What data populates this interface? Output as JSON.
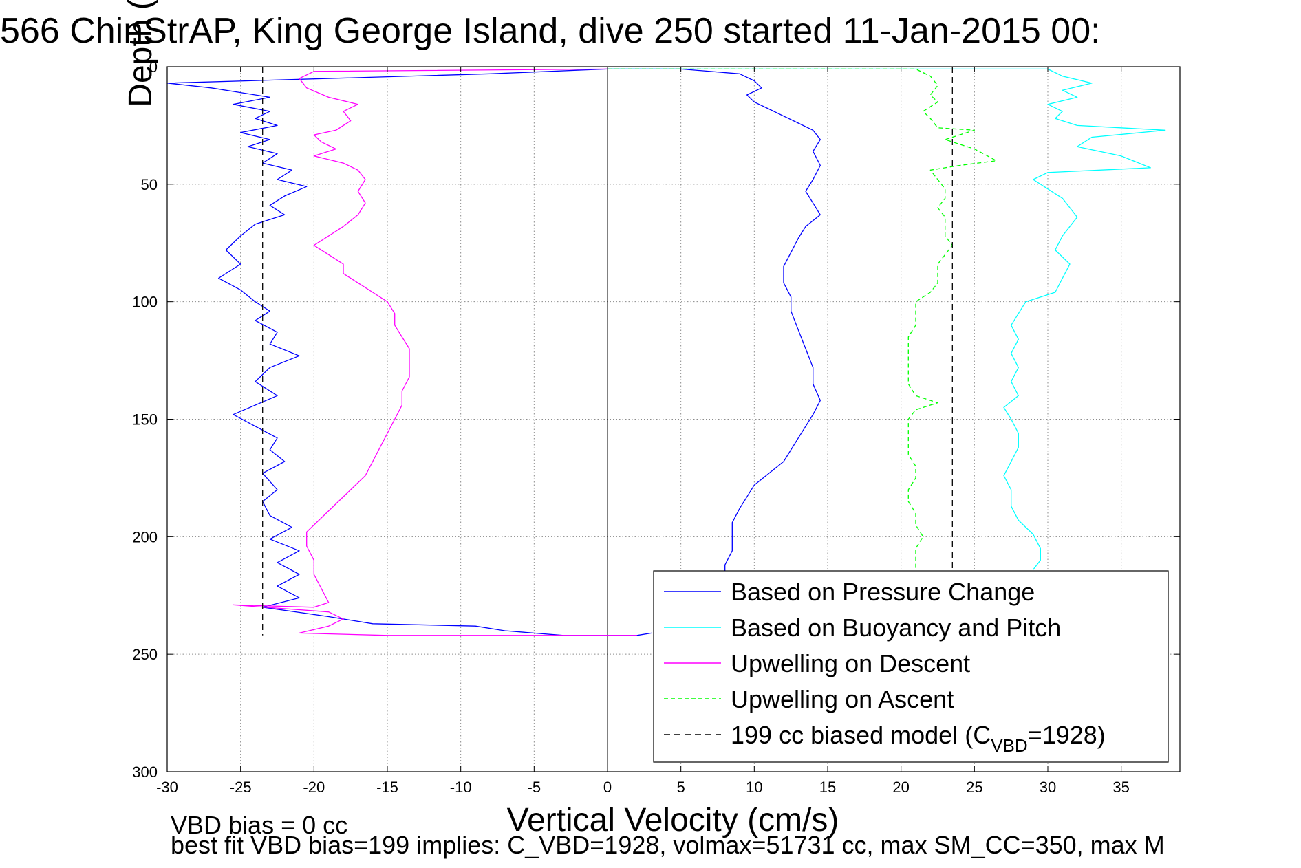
{
  "figure": {
    "title": "566 ChinStrAP, King George Island, dive 250 started 11-Jan-2015 00:",
    "footer_line1": "VBD bias = 0 cc",
    "footer_line2": "best fit VBD bias=199 implies: C_VBD=1928, volmax=51731 cc, max SM_CC=350, max M"
  },
  "chart_data": {
    "type": "line",
    "xlabel": "Vertical Velocity (cm/s)",
    "ylabel": "Depth (m)",
    "xlim": [
      -30,
      39
    ],
    "ylim": [
      0,
      300
    ],
    "y_reversed": true,
    "xticks": [
      -30,
      -25,
      -20,
      -15,
      -10,
      -5,
      0,
      5,
      10,
      15,
      20,
      25,
      30,
      35
    ],
    "yticks": [
      0,
      50,
      100,
      150,
      200,
      250,
      300
    ],
    "grid": true,
    "legend_position": "lower-right",
    "series": [
      {
        "name": "Based on Pressure Change",
        "color": "#0000ff",
        "dash": "solid",
        "points": [
          [
            0,
            1
          ],
          [
            -8,
            3
          ],
          [
            -30,
            7
          ],
          [
            -27,
            9
          ],
          [
            -25,
            11
          ],
          [
            -23,
            13
          ],
          [
            -25.5,
            16
          ],
          [
            -23,
            19
          ],
          [
            -24,
            22
          ],
          [
            -22.5,
            25
          ],
          [
            -25,
            28
          ],
          [
            -23,
            31
          ],
          [
            -24.5,
            34
          ],
          [
            -22.5,
            37
          ],
          [
            -23.5,
            41
          ],
          [
            -21.5,
            44
          ],
          [
            -22.5,
            48
          ],
          [
            -20.5,
            51
          ],
          [
            -22,
            55
          ],
          [
            -23,
            59
          ],
          [
            -22,
            63
          ],
          [
            -24,
            67
          ],
          [
            -25,
            72
          ],
          [
            -26,
            78
          ],
          [
            -25,
            84
          ],
          [
            -26.5,
            90
          ],
          [
            -25,
            95
          ],
          [
            -24,
            100
          ],
          [
            -23,
            104
          ],
          [
            -24,
            108
          ],
          [
            -22.5,
            113
          ],
          [
            -23,
            118
          ],
          [
            -21,
            123
          ],
          [
            -23,
            128
          ],
          [
            -24,
            134
          ],
          [
            -22.5,
            140
          ],
          [
            -25.5,
            148
          ],
          [
            -24,
            153
          ],
          [
            -22.5,
            158
          ],
          [
            -23,
            163
          ],
          [
            -22,
            168
          ],
          [
            -23.5,
            173
          ],
          [
            -22.5,
            180
          ],
          [
            -23.5,
            185
          ],
          [
            -23,
            191
          ],
          [
            -21.5,
            196
          ],
          [
            -23,
            201
          ],
          [
            -21,
            206
          ],
          [
            -22.5,
            211
          ],
          [
            -21,
            216
          ],
          [
            -22.5,
            221
          ],
          [
            -21,
            226
          ],
          [
            -23.5,
            230
          ],
          [
            -19,
            234
          ],
          [
            -16,
            237
          ],
          [
            -9,
            238
          ],
          [
            -7,
            240
          ],
          [
            -3,
            242
          ],
          [
            0,
            242
          ],
          [
            2,
            242
          ],
          [
            3,
            241
          ]
        ]
      },
      {
        "name": "Based on Pressure Change",
        "color": "#0000ff",
        "dash": "solid",
        "points": [
          [
            0,
            1
          ],
          [
            5,
            1
          ],
          [
            9,
            3
          ],
          [
            10,
            6
          ],
          [
            10.5,
            9
          ],
          [
            9.5,
            12
          ],
          [
            10,
            15
          ],
          [
            11,
            18
          ],
          [
            12,
            21
          ],
          [
            13,
            24
          ],
          [
            14,
            27
          ],
          [
            14.5,
            31
          ],
          [
            14,
            36
          ],
          [
            14.5,
            42
          ],
          [
            14,
            48
          ],
          [
            13.5,
            53
          ],
          [
            14,
            58
          ],
          [
            14.5,
            63
          ],
          [
            13.5,
            68
          ],
          [
            13,
            73
          ],
          [
            12.5,
            79
          ],
          [
            12,
            85
          ],
          [
            12,
            92
          ],
          [
            12.5,
            98
          ],
          [
            12.5,
            104
          ],
          [
            13,
            112
          ],
          [
            13.5,
            120
          ],
          [
            14,
            128
          ],
          [
            14,
            135
          ],
          [
            14.5,
            142
          ],
          [
            14,
            148
          ],
          [
            13.5,
            153
          ],
          [
            13,
            158
          ],
          [
            12.5,
            163
          ],
          [
            12,
            168
          ],
          [
            11,
            173
          ],
          [
            10,
            178
          ],
          [
            9.5,
            183
          ],
          [
            9,
            188
          ],
          [
            8.5,
            194
          ],
          [
            8.5,
            200
          ],
          [
            8.5,
            206
          ],
          [
            8,
            212
          ],
          [
            8,
            216
          ]
        ]
      },
      {
        "name": "Based on Buoyancy and Pitch",
        "color": "#00ffff",
        "dash": "solid",
        "points": [
          [
            0,
            1
          ],
          [
            30,
            1
          ],
          [
            31,
            4
          ],
          [
            33,
            7
          ],
          [
            31,
            10
          ],
          [
            32,
            13
          ],
          [
            30,
            16
          ],
          [
            31,
            19
          ],
          [
            30.5,
            22
          ],
          [
            32,
            25
          ],
          [
            38,
            27
          ],
          [
            33,
            30
          ],
          [
            32,
            34
          ],
          [
            35,
            38
          ],
          [
            37,
            43
          ],
          [
            30,
            45
          ],
          [
            29,
            48
          ],
          [
            30,
            52
          ],
          [
            31,
            56
          ],
          [
            31.5,
            60
          ],
          [
            32,
            64
          ],
          [
            31.5,
            68
          ],
          [
            31,
            72
          ],
          [
            30.5,
            78
          ],
          [
            31.5,
            84
          ],
          [
            31,
            90
          ],
          [
            30.5,
            96
          ],
          [
            28.5,
            100
          ],
          [
            28,
            105
          ],
          [
            27.5,
            110
          ],
          [
            28,
            116
          ],
          [
            27.5,
            122
          ],
          [
            28,
            128
          ],
          [
            27.5,
            134
          ],
          [
            28,
            140
          ],
          [
            27,
            145
          ],
          [
            27.5,
            150
          ],
          [
            28,
            156
          ],
          [
            28,
            162
          ],
          [
            27.5,
            168
          ],
          [
            27,
            174
          ],
          [
            27.5,
            180
          ],
          [
            27.5,
            187
          ],
          [
            28,
            193
          ],
          [
            29,
            199
          ],
          [
            29.5,
            205
          ],
          [
            29.5,
            210
          ],
          [
            29,
            214
          ]
        ]
      },
      {
        "name": "Upwelling on Descent",
        "color": "#ff00ff",
        "dash": "solid",
        "points": [
          [
            0,
            1
          ],
          [
            -20,
            2
          ],
          [
            -21,
            5
          ],
          [
            -20.5,
            9
          ],
          [
            -19,
            13
          ],
          [
            -17,
            16
          ],
          [
            -18,
            19
          ],
          [
            -17.5,
            23
          ],
          [
            -18.5,
            27
          ],
          [
            -20,
            29
          ],
          [
            -19.5,
            32
          ],
          [
            -18.5,
            35
          ],
          [
            -20,
            38
          ],
          [
            -18,
            41
          ],
          [
            -17,
            44
          ],
          [
            -16.5,
            48
          ],
          [
            -17,
            53
          ],
          [
            -16.5,
            58
          ],
          [
            -17,
            63
          ],
          [
            -18,
            68
          ],
          [
            -19,
            72
          ],
          [
            -20,
            76
          ],
          [
            -19,
            80
          ],
          [
            -18,
            84
          ],
          [
            -18,
            88
          ],
          [
            -17,
            92
          ],
          [
            -16,
            96
          ],
          [
            -15,
            100
          ],
          [
            -14.5,
            105
          ],
          [
            -14.5,
            110
          ],
          [
            -14,
            115
          ],
          [
            -13.5,
            120
          ],
          [
            -13.5,
            126
          ],
          [
            -13.5,
            132
          ],
          [
            -14,
            138
          ],
          [
            -14,
            144
          ],
          [
            -14.5,
            150
          ],
          [
            -15,
            156
          ],
          [
            -15.5,
            162
          ],
          [
            -16,
            168
          ],
          [
            -16.5,
            174
          ],
          [
            -17.5,
            180
          ],
          [
            -18.5,
            186
          ],
          [
            -19.5,
            192
          ],
          [
            -20.5,
            198
          ],
          [
            -20.5,
            204
          ],
          [
            -20,
            210
          ],
          [
            -20,
            216
          ],
          [
            -19.5,
            222
          ],
          [
            -19,
            228
          ],
          [
            -20,
            230
          ],
          [
            -25.5,
            229
          ],
          [
            -19,
            232
          ],
          [
            -18,
            235
          ],
          [
            -19,
            238
          ],
          [
            -21,
            241
          ],
          [
            -15,
            242
          ],
          [
            -5,
            242
          ],
          [
            0,
            242
          ],
          [
            2,
            242
          ]
        ]
      },
      {
        "name": "Upwelling on Ascent",
        "color": "#00ff00",
        "dash": "dashed",
        "points": [
          [
            0,
            1
          ],
          [
            21,
            1
          ],
          [
            22,
            4
          ],
          [
            22.5,
            8
          ],
          [
            22,
            12
          ],
          [
            22.5,
            15
          ],
          [
            21.5,
            19
          ],
          [
            22,
            22
          ],
          [
            22.5,
            26
          ],
          [
            25,
            27
          ],
          [
            23,
            31
          ],
          [
            25,
            35
          ],
          [
            26.5,
            40
          ],
          [
            24,
            42
          ],
          [
            22,
            44
          ],
          [
            22.5,
            48
          ],
          [
            23,
            52
          ],
          [
            23,
            56
          ],
          [
            22.5,
            60
          ],
          [
            23,
            64
          ],
          [
            23,
            68
          ],
          [
            23,
            72
          ],
          [
            23.5,
            76
          ],
          [
            23,
            80
          ],
          [
            22.5,
            84
          ],
          [
            22.5,
            88
          ],
          [
            22.5,
            92
          ],
          [
            22,
            96
          ],
          [
            21,
            100
          ],
          [
            21,
            105
          ],
          [
            21,
            110
          ],
          [
            20.5,
            115
          ],
          [
            20.5,
            120
          ],
          [
            20.5,
            125
          ],
          [
            20.5,
            130
          ],
          [
            20.5,
            135
          ],
          [
            21,
            140
          ],
          [
            22.5,
            143
          ],
          [
            21,
            146
          ],
          [
            20.5,
            150
          ],
          [
            20.5,
            155
          ],
          [
            20.5,
            160
          ],
          [
            20.5,
            165
          ],
          [
            21,
            170
          ],
          [
            21,
            175
          ],
          [
            20.5,
            180
          ],
          [
            20.5,
            185
          ],
          [
            21,
            190
          ],
          [
            21,
            195
          ],
          [
            21.5,
            200
          ],
          [
            21,
            205
          ],
          [
            21,
            210
          ],
          [
            21,
            214
          ]
        ]
      },
      {
        "name": "199 cc biased model (C_VBD=1928)",
        "color": "#000000",
        "dash": "dashed",
        "points": [
          [
            -23.5,
            0
          ],
          [
            -23.5,
            242
          ],
          [
            23.5,
            0
          ],
          [
            23.5,
            214
          ]
        ]
      }
    ],
    "legend": [
      {
        "label": "Based on Pressure Change",
        "color": "#0000ff",
        "dash": "solid"
      },
      {
        "label": "Based on Buoyancy and Pitch",
        "color": "#00ffff",
        "dash": "solid"
      },
      {
        "label": "Upwelling on Descent",
        "color": "#ff00ff",
        "dash": "solid"
      },
      {
        "label": "Upwelling on Ascent",
        "color": "#00ff00",
        "dash": "dashed"
      },
      {
        "label": "199 cc biased model (C",
        "sub": "VBD",
        "tail": "=1928)",
        "color": "#000000",
        "dash": "dashed"
      }
    ]
  }
}
